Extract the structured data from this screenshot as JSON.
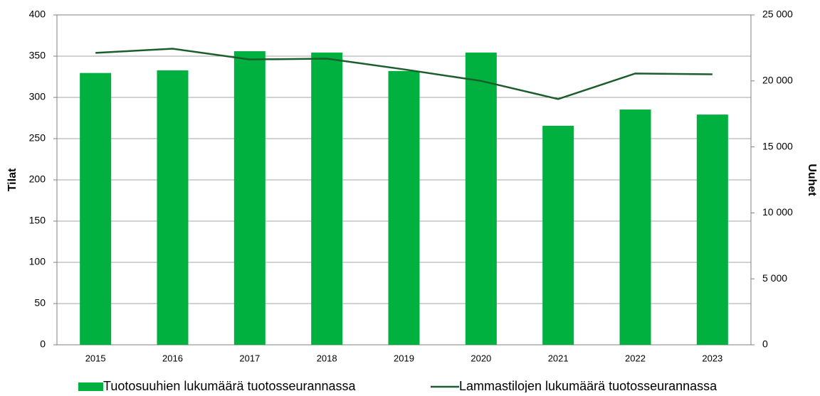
{
  "chart_data": {
    "type": "bar-line",
    "ylabel": "Tilat",
    "y2label": "Uuhet",
    "categories": [
      "2015",
      "2016",
      "2017",
      "2018",
      "2019",
      "2020",
      "2021",
      "2022",
      "2023"
    ],
    "series": [
      {
        "name": "Tuotosuuhien lukumäärä tuotosseurannassa",
        "type": "bar",
        "axis": "y2",
        "color": "#00b140",
        "values": [
          20600,
          20800,
          22250,
          22150,
          20750,
          22150,
          16600,
          17830,
          17450
        ]
      },
      {
        "name": "Lammastilojen lukumäärä tuotosseurannassa",
        "type": "line",
        "axis": "y",
        "color": "#1b5e2b",
        "values": [
          354,
          359,
          346,
          347,
          334,
          320,
          298,
          329,
          328
        ]
      }
    ],
    "ylim": [
      0,
      400
    ],
    "yticks": [
      0,
      50,
      100,
      150,
      200,
      250,
      300,
      350,
      400
    ],
    "y2lim": [
      0,
      25000
    ],
    "y2ticks": [
      0,
      {
        "value": 5000,
        "label": "5 000"
      },
      {
        "value": 10000,
        "label": "10 000"
      },
      {
        "value": 15000,
        "label": "15 000"
      },
      {
        "value": 20000,
        "label": "20 000"
      },
      {
        "value": 25000,
        "label": "25 000"
      }
    ],
    "grid": true,
    "legend": "bottom"
  }
}
